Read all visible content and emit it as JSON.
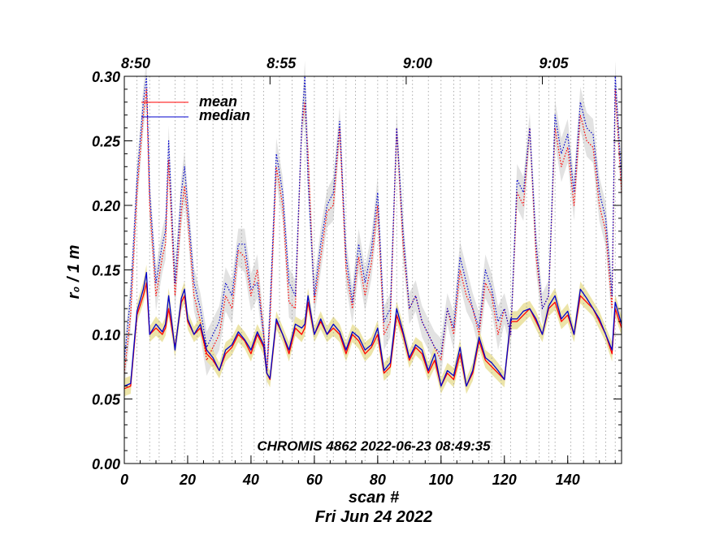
{
  "chart_data": {
    "type": "line",
    "title": "",
    "xlabel": "scan #",
    "ylabel": "r₀ / 1 m",
    "date_label": "Fri Jun 24 2022",
    "annotation": "CHROMIS 4862 2022-06-23 08:49:35",
    "xlim": [
      0,
      157
    ],
    "ylim": [
      0,
      0.3
    ],
    "x_ticks": [
      0,
      20,
      40,
      60,
      80,
      100,
      120,
      140
    ],
    "x_tick_labels": [
      "0",
      "20",
      "40",
      "60",
      "80",
      "100",
      "120",
      "140"
    ],
    "y_ticks": [
      0.0,
      0.05,
      0.1,
      0.15,
      0.2,
      0.25,
      0.3
    ],
    "y_tick_labels": [
      "0.00",
      "0.05",
      "0.10",
      "0.15",
      "0.20",
      "0.25",
      "0.30"
    ],
    "top_time_labels": [
      "8:50",
      "8:55",
      "9:00",
      "9:05"
    ],
    "top_time_scan_positions": [
      0,
      46,
      89,
      132
    ],
    "scan_boundaries": [
      4,
      8,
      11,
      16,
      19,
      23,
      28,
      31,
      34,
      37,
      41,
      44,
      49,
      53,
      57,
      60,
      64,
      66,
      70,
      73,
      76,
      80,
      83,
      86,
      88,
      91,
      96,
      100,
      104,
      106,
      112,
      116,
      119,
      122,
      127,
      131,
      134,
      136,
      141,
      145,
      149,
      152,
      155
    ],
    "legend": [
      {
        "label": "mean",
        "color": "#ff0000"
      },
      {
        "label": "median",
        "color": "#0000cc"
      }
    ],
    "colors": {
      "mean": "#ff0000",
      "median": "#0000cc",
      "band_upper": "#e2e2e2",
      "band_lower": "#ece4a8",
      "boundary": "#999999"
    },
    "anchor_x": [
      0,
      2,
      4,
      6,
      7,
      8,
      10,
      12,
      13,
      14,
      16,
      18,
      19,
      20,
      22,
      24,
      26,
      28,
      30,
      32,
      34,
      36,
      38,
      40,
      42,
      44,
      45,
      46,
      48,
      50,
      52,
      54,
      56,
      57,
      58,
      60,
      62,
      64,
      66,
      68,
      70,
      72,
      74,
      76,
      78,
      80,
      82,
      84,
      86,
      88,
      90,
      92,
      94,
      96,
      98,
      100,
      102,
      104,
      106,
      108,
      110,
      112,
      114,
      116,
      118,
      120,
      122,
      124,
      126,
      128,
      130,
      132,
      134,
      136,
      138,
      140,
      142,
      144,
      146,
      148,
      150,
      152,
      154,
      155,
      157
    ],
    "series": [
      {
        "name": "mean upper",
        "style": "dotted",
        "values": [
          0.07,
          0.115,
          0.21,
          0.27,
          0.29,
          0.2,
          0.13,
          0.16,
          0.17,
          0.235,
          0.13,
          0.195,
          0.215,
          0.19,
          0.13,
          0.11,
          0.08,
          0.09,
          0.1,
          0.13,
          0.12,
          0.165,
          0.16,
          0.13,
          0.15,
          0.1,
          0.07,
          0.11,
          0.23,
          0.2,
          0.125,
          0.12,
          0.26,
          0.28,
          0.24,
          0.125,
          0.16,
          0.195,
          0.2,
          0.26,
          0.15,
          0.12,
          0.16,
          0.13,
          0.155,
          0.2,
          0.1,
          0.11,
          0.26,
          0.17,
          0.12,
          0.13,
          0.11,
          0.1,
          0.09,
          0.08,
          0.12,
          0.1,
          0.15,
          0.13,
          0.12,
          0.1,
          0.14,
          0.13,
          0.1,
          0.12,
          0.1,
          0.21,
          0.2,
          0.26,
          0.16,
          0.12,
          0.13,
          0.26,
          0.23,
          0.245,
          0.2,
          0.27,
          0.25,
          0.245,
          0.2,
          0.18,
          0.12,
          0.29,
          0.21
        ]
      },
      {
        "name": "median upper",
        "style": "dotted",
        "values": [
          0.08,
          0.13,
          0.22,
          0.28,
          0.3,
          0.21,
          0.14,
          0.17,
          0.18,
          0.25,
          0.14,
          0.21,
          0.23,
          0.2,
          0.14,
          0.12,
          0.09,
          0.1,
          0.11,
          0.14,
          0.13,
          0.17,
          0.17,
          0.135,
          0.14,
          0.1,
          0.07,
          0.12,
          0.24,
          0.21,
          0.14,
          0.13,
          0.26,
          0.3,
          0.22,
          0.13,
          0.17,
          0.2,
          0.21,
          0.265,
          0.16,
          0.125,
          0.17,
          0.14,
          0.165,
          0.21,
          0.11,
          0.12,
          0.26,
          0.18,
          0.12,
          0.13,
          0.11,
          0.1,
          0.09,
          0.085,
          0.12,
          0.105,
          0.16,
          0.14,
          0.12,
          0.105,
          0.15,
          0.135,
          0.11,
          0.12,
          0.1,
          0.22,
          0.21,
          0.26,
          0.17,
          0.12,
          0.13,
          0.27,
          0.24,
          0.255,
          0.21,
          0.28,
          0.26,
          0.255,
          0.21,
          0.19,
          0.13,
          0.3,
          0.22
        ]
      },
      {
        "name": "mean",
        "style": "solid",
        "values": [
          0.058,
          0.06,
          0.115,
          0.13,
          0.14,
          0.1,
          0.105,
          0.1,
          0.105,
          0.12,
          0.09,
          0.125,
          0.13,
          0.11,
          0.1,
          0.105,
          0.085,
          0.08,
          0.072,
          0.085,
          0.09,
          0.1,
          0.095,
          0.085,
          0.1,
          0.09,
          0.07,
          0.065,
          0.11,
          0.1,
          0.085,
          0.105,
          0.1,
          0.105,
          0.125,
          0.1,
          0.11,
          0.1,
          0.105,
          0.1,
          0.085,
          0.1,
          0.095,
          0.085,
          0.09,
          0.1,
          0.07,
          0.075,
          0.115,
          0.1,
          0.08,
          0.09,
          0.085,
          0.07,
          0.08,
          0.06,
          0.07,
          0.065,
          0.085,
          0.06,
          0.07,
          0.095,
          0.08,
          0.075,
          0.07,
          0.065,
          0.11,
          0.11,
          0.115,
          0.12,
          0.11,
          0.1,
          0.12,
          0.125,
          0.11,
          0.115,
          0.1,
          0.13,
          0.125,
          0.12,
          0.11,
          0.1,
          0.085,
          0.12,
          0.105
        ]
      },
      {
        "name": "median",
        "style": "solid",
        "values": [
          0.06,
          0.062,
          0.118,
          0.135,
          0.148,
          0.1,
          0.108,
          0.102,
          0.108,
          0.13,
          0.088,
          0.128,
          0.135,
          0.112,
          0.1,
          0.108,
          0.088,
          0.082,
          0.072,
          0.088,
          0.092,
          0.102,
          0.096,
          0.088,
          0.102,
          0.092,
          0.07,
          0.066,
          0.112,
          0.1,
          0.088,
          0.108,
          0.105,
          0.108,
          0.13,
          0.1,
          0.112,
          0.1,
          0.108,
          0.102,
          0.088,
          0.102,
          0.098,
          0.088,
          0.092,
          0.105,
          0.072,
          0.078,
          0.12,
          0.102,
          0.082,
          0.092,
          0.088,
          0.072,
          0.085,
          0.06,
          0.072,
          0.068,
          0.09,
          0.06,
          0.072,
          0.098,
          0.082,
          0.078,
          0.072,
          0.065,
          0.112,
          0.112,
          0.118,
          0.12,
          0.112,
          0.1,
          0.122,
          0.13,
          0.112,
          0.118,
          0.1,
          0.135,
          0.128,
          0.12,
          0.112,
          0.1,
          0.088,
          0.125,
          0.108
        ]
      }
    ]
  }
}
